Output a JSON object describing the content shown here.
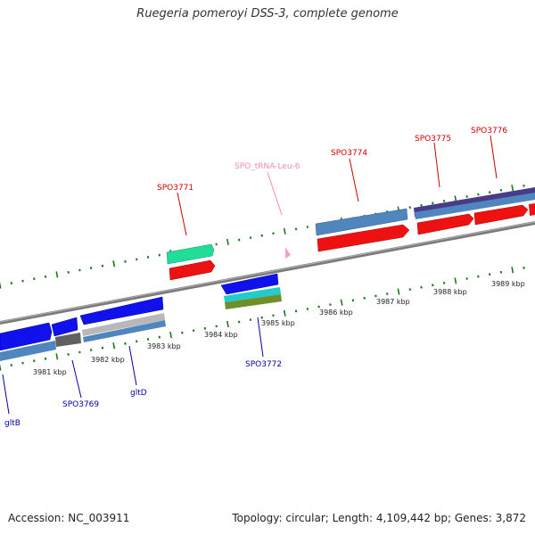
{
  "title": "Ruegeria pomeroyi DSS-3, complete genome",
  "footer": {
    "accession": "Accession: NC_003911",
    "summary": "Topology: circular; Length: 4,109,442 bp; Genes: 3,872"
  },
  "scale": {
    "unit": "kbp",
    "ticks": [
      "3981 kbp",
      "3982 kbp",
      "3983 kbp",
      "3984 kbp",
      "3985 kbp",
      "3986 kbp",
      "3987 kbp",
      "3988 kbp",
      "3989 kbp"
    ]
  },
  "colors": {
    "forward_label": "#cc0000",
    "reverse_label": "#0000aa",
    "trna_label": "#ee88bb",
    "tick": "#1a7a1a",
    "backbone": "#808080"
  },
  "genes_forward": [
    {
      "name": "SPO3771",
      "color": "#cc0000"
    },
    {
      "name": "SPO_tRNA-Leu-6",
      "color": "#ee88bb"
    },
    {
      "name": "SPO3774",
      "color": "#cc0000"
    },
    {
      "name": "SPO3775",
      "color": "#cc0000"
    },
    {
      "name": "SPO3776",
      "color": "#cc0000"
    }
  ],
  "genes_reverse": [
    {
      "name": "gltB",
      "color": "#0000aa"
    },
    {
      "name": "SPO3769",
      "color": "#0000aa"
    },
    {
      "name": "gltD",
      "color": "#0000aa"
    },
    {
      "name": "SPO3772",
      "color": "#0000aa"
    }
  ]
}
